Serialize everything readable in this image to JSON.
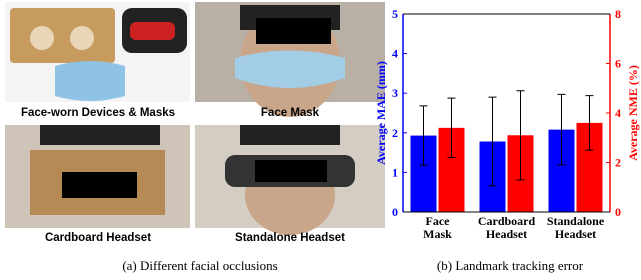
{
  "panels": [
    {
      "label": "Face-worn Devices & Masks"
    },
    {
      "label": "Face Mask"
    },
    {
      "label": "Cardboard Headset"
    },
    {
      "label": "Standalone Headset"
    }
  ],
  "captions": [
    "(a) Different facial occlusions",
    "(b) Landmark tracking error"
  ],
  "chart_data": {
    "type": "bar",
    "categories": [
      "Face Mask",
      "Cardboard Headset",
      "Standalone Headset"
    ],
    "ylabel": "Average MAE (mm)",
    "y2label": "Average NME (%)",
    "series": [
      {
        "color": "#0000ff",
        "values": [
          1.93,
          1.78,
          2.08
        ],
        "errors": [
          0.75,
          1.12,
          0.89
        ]
      },
      {
        "color": "#ff0000",
        "axis": "y2",
        "values": [
          3.4,
          3.1,
          3.6
        ],
        "errors": [
          1.2,
          1.8,
          1.1
        ]
      }
    ],
    "ylim": [
      0,
      5
    ],
    "yticks": [
      0,
      1,
      2,
      3,
      4,
      5
    ],
    "y2lim": [
      0,
      8
    ],
    "y2ticks": [
      0,
      2,
      4,
      6,
      8
    ]
  }
}
